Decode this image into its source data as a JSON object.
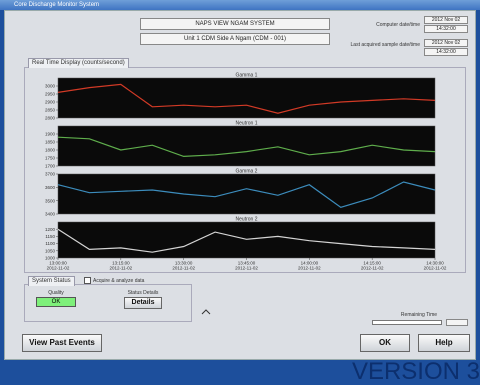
{
  "window_title": "Core Discharge Monitor System",
  "header": {
    "system": "NAPS VIEW NGAM SYSTEM",
    "unit": "Unit 1 CDM Side A Ngam (CDM - 001)"
  },
  "computer_time": {
    "label": "Computer date/time",
    "date": "2012 Nov 02",
    "time": "14:32:00"
  },
  "last_sample": {
    "label": "Last acquired sample date/time",
    "date": "2012 Nov 02",
    "time": "14:32:00"
  },
  "chart_panel": {
    "tab": "Real Time Display (counts/second)"
  },
  "chart_data": [
    {
      "type": "line",
      "title": "Gamma 1",
      "color": "#d23a26",
      "values": [
        2960,
        2990,
        3010,
        2870,
        2880,
        2870,
        2880,
        2830,
        2880,
        2900,
        2910,
        2920,
        2910
      ],
      "ylim": [
        2800,
        3050
      ],
      "yticks": [
        2800,
        2850,
        2900,
        2950,
        3000
      ]
    },
    {
      "type": "line",
      "title": "Neutron 1",
      "color": "#5fae4c",
      "values": [
        1880,
        1870,
        1800,
        1830,
        1760,
        1770,
        1790,
        1820,
        1770,
        1790,
        1830,
        1800,
        1790
      ],
      "ylim": [
        1700,
        1950
      ],
      "yticks": [
        1700,
        1750,
        1800,
        1850,
        1900
      ]
    },
    {
      "type": "line",
      "title": "Gamma 2",
      "color": "#3c8cbc",
      "values": [
        3620,
        3560,
        3570,
        3580,
        3550,
        3530,
        3590,
        3540,
        3620,
        3450,
        3520,
        3640,
        3580
      ],
      "ylim": [
        3400,
        3700
      ],
      "yticks": [
        3400,
        3500,
        3600,
        3700
      ]
    },
    {
      "type": "line",
      "title": "Neutron 2",
      "color": "#d4d4d4",
      "values": [
        1200,
        1060,
        1070,
        1040,
        1080,
        1180,
        1130,
        1150,
        1120,
        1100,
        1080,
        1070,
        1060
      ],
      "ylim": [
        1000,
        1250
      ],
      "yticks": [
        1000,
        1050,
        1100,
        1150,
        1200
      ],
      "categories": [
        "13:00:00",
        null,
        "13:15:00",
        null,
        "13:30:00",
        null,
        "13:45:00",
        null,
        "14:00:00",
        null,
        "14:15:00",
        null,
        "14:30:00"
      ],
      "category_dates": [
        "2012-11-02",
        null,
        "2012-11-02",
        null,
        "2012-11-02",
        null,
        "2012-11-02",
        null,
        "2012-11-02",
        null,
        "2012-11-02",
        null,
        "2012-11-02"
      ]
    }
  ],
  "status": {
    "tab": "System Status",
    "checkbox": "Acquire & analyze data",
    "quality_label": "Quality",
    "quality_value": "OK",
    "details_label": "Status Details",
    "details_button": "Details"
  },
  "remaining": {
    "label": "Remaining Time"
  },
  "buttons": {
    "past": "View Past Events",
    "ok": "OK",
    "help": "Help"
  },
  "version": "VERSION 3"
}
